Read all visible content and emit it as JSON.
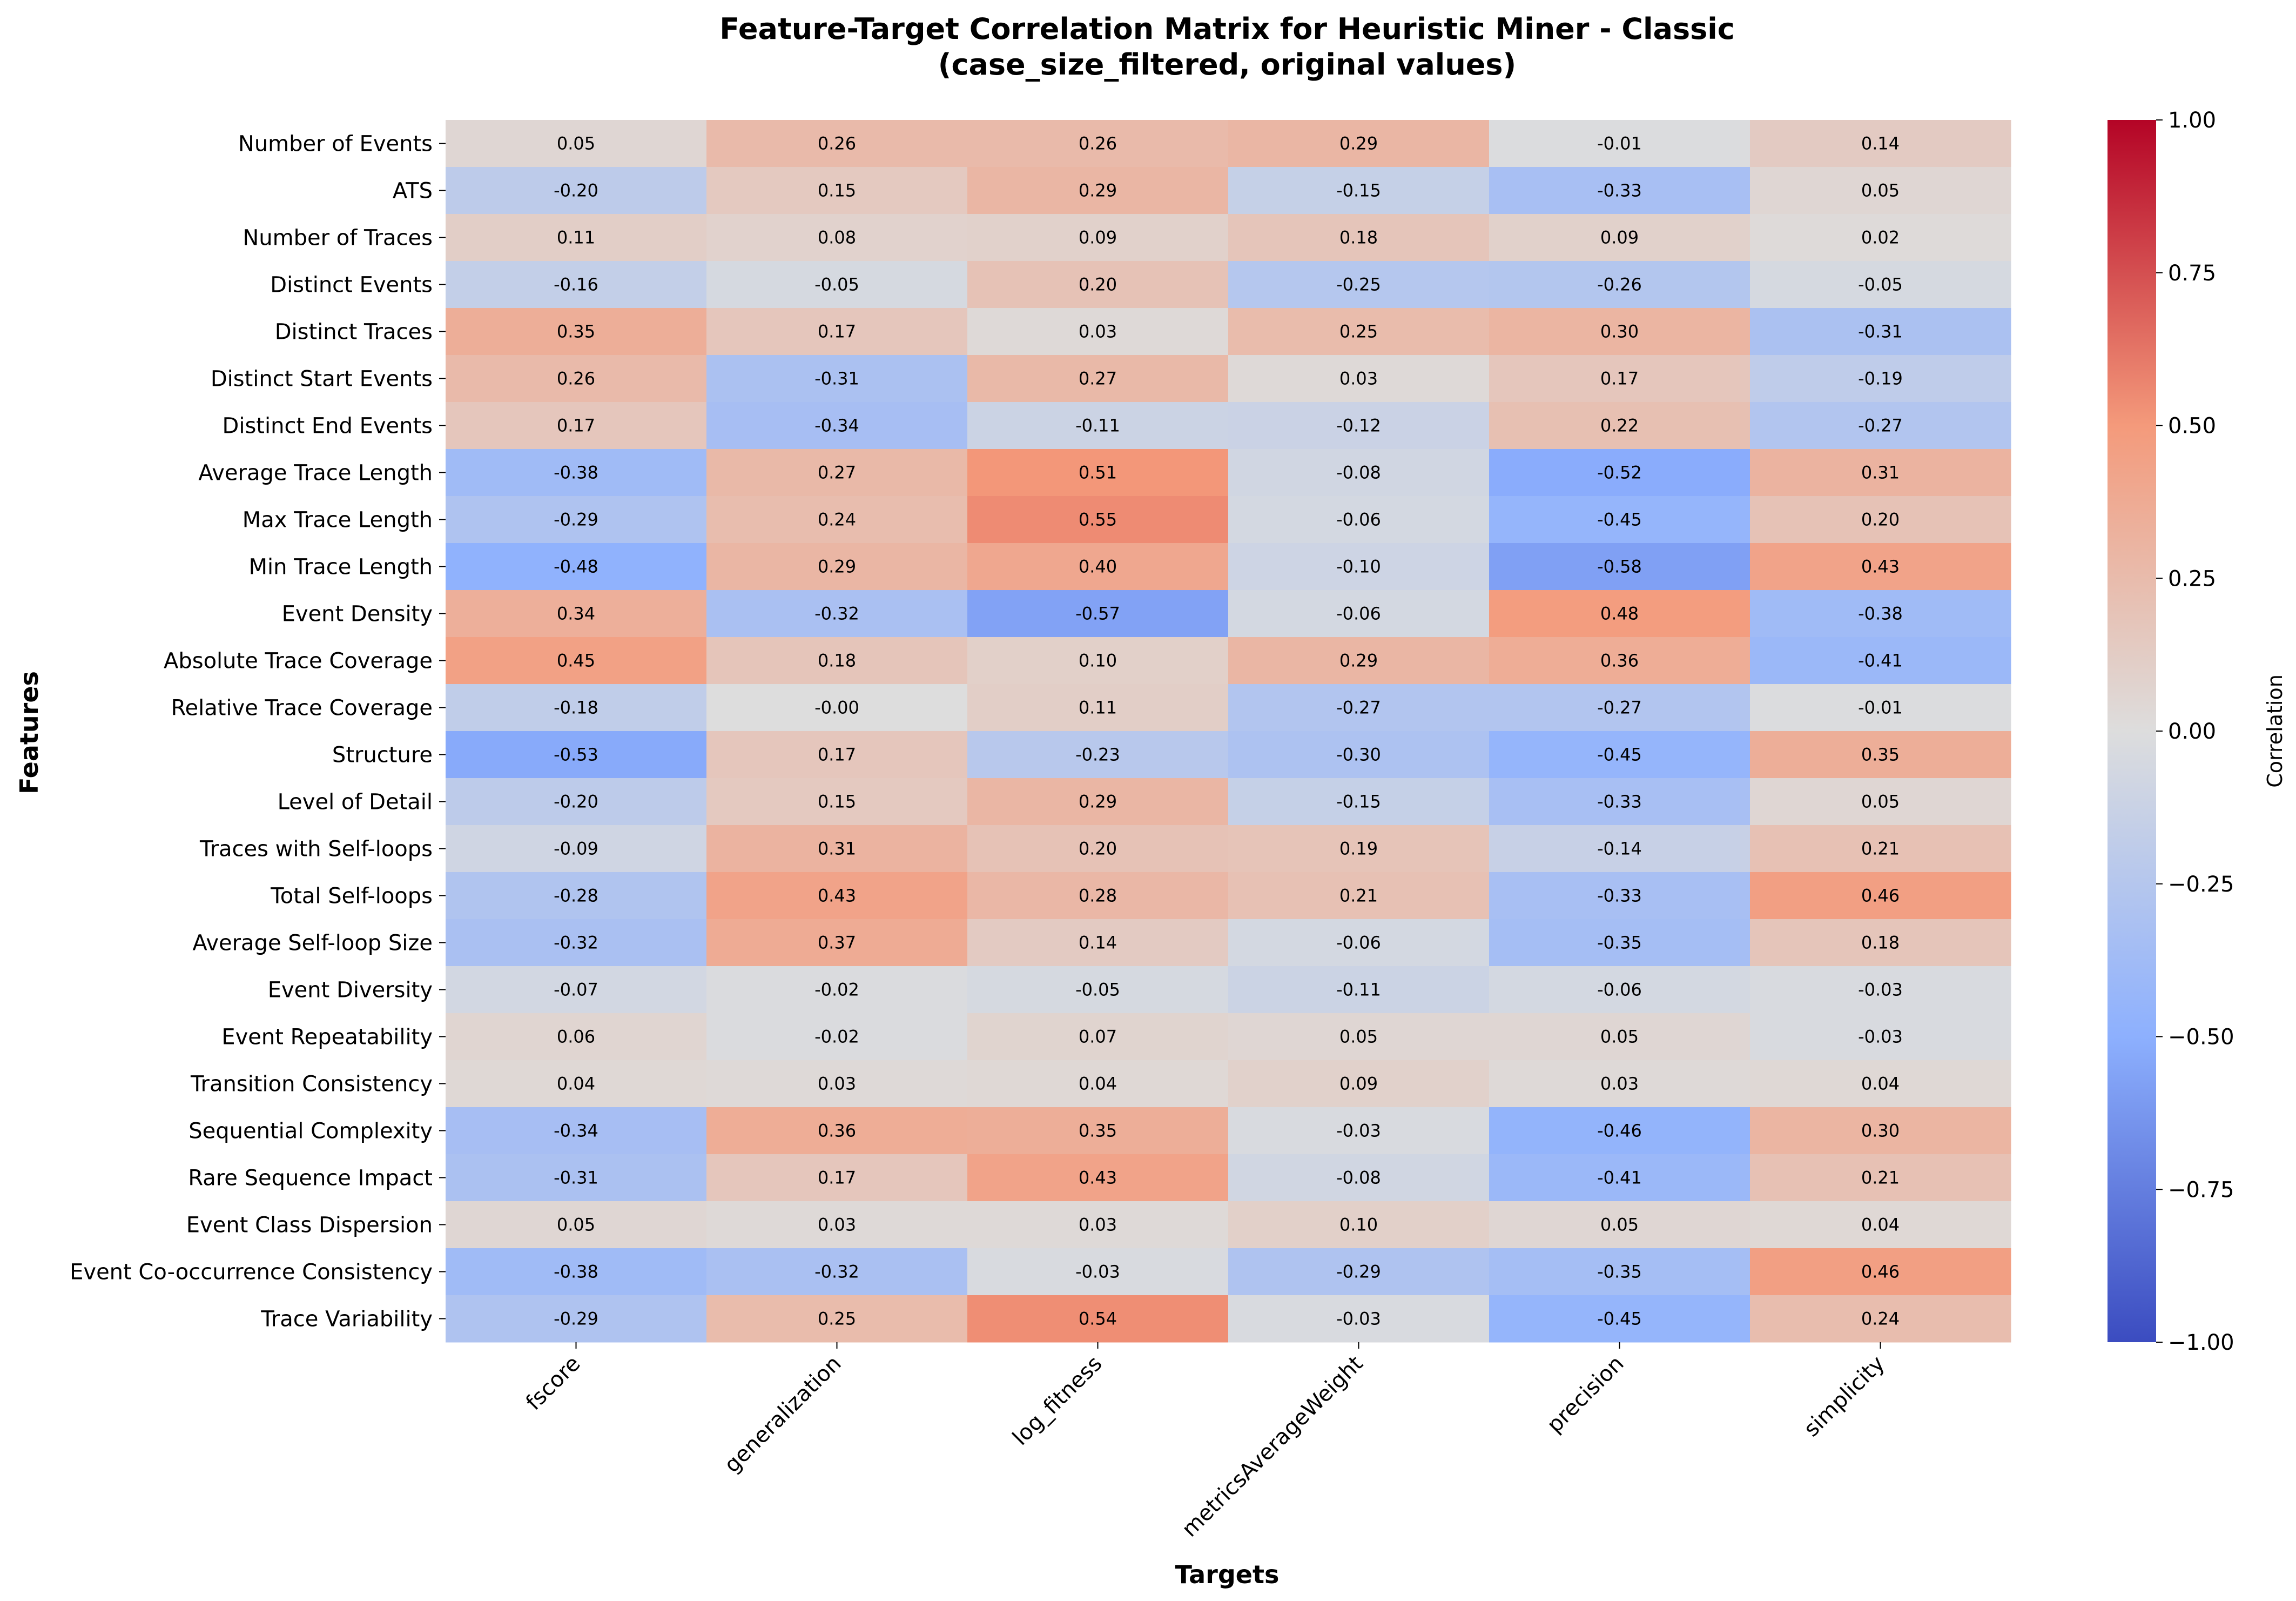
{
  "chart_data": {
    "type": "heatmap",
    "title": "Feature-Target Correlation Matrix for Heuristic Miner - Classic",
    "subtitle": "(case_size_filtered, original values)",
    "xlabel": "Targets",
    "ylabel": "Features",
    "colorbar_label": "Correlation",
    "colormap": "coolwarm",
    "vmin": -1.0,
    "vmax": 1.0,
    "colorbar_ticks": [
      "1.00",
      "0.75",
      "0.50",
      "0.25",
      "0.00",
      "−0.25",
      "−0.50",
      "−0.75",
      "−1.00"
    ],
    "colorbar_tick_values": [
      1.0,
      0.75,
      0.5,
      0.25,
      0.0,
      -0.25,
      -0.5,
      -0.75,
      -1.0
    ],
    "columns": [
      "fscore",
      "generalization",
      "log_fitness",
      "metricsAverageWeight",
      "precision",
      "simplicity"
    ],
    "rows": [
      "Number of Events",
      "ATS",
      "Number of Traces",
      "Distinct Events",
      "Distinct Traces",
      "Distinct Start Events",
      "Distinct End Events",
      "Average Trace Length",
      "Max Trace Length",
      "Min Trace Length",
      "Event Density",
      "Absolute Trace Coverage",
      "Relative Trace Coverage",
      "Structure",
      "Level of Detail",
      "Traces with Self-loops",
      "Total Self-loops",
      "Average Self-loop Size",
      "Event Diversity",
      "Event Repeatability",
      "Transition Consistency",
      "Sequential Complexity",
      "Rare Sequence Impact",
      "Event Class Dispersion",
      "Event Co-occurrence Consistency",
      "Trace Variability"
    ],
    "values": [
      [
        0.05,
        0.26,
        0.26,
        0.29,
        -0.01,
        0.14
      ],
      [
        -0.2,
        0.15,
        0.29,
        -0.15,
        -0.33,
        0.05
      ],
      [
        0.11,
        0.08,
        0.09,
        0.18,
        0.09,
        0.02
      ],
      [
        -0.16,
        -0.05,
        0.2,
        -0.25,
        -0.26,
        -0.05
      ],
      [
        0.35,
        0.17,
        0.03,
        0.25,
        0.3,
        -0.31
      ],
      [
        0.26,
        -0.31,
        0.27,
        0.03,
        0.17,
        -0.19
      ],
      [
        0.17,
        -0.34,
        -0.11,
        -0.12,
        0.22,
        -0.27
      ],
      [
        -0.38,
        0.27,
        0.51,
        -0.08,
        -0.52,
        0.31
      ],
      [
        -0.29,
        0.24,
        0.55,
        -0.06,
        -0.45,
        0.2
      ],
      [
        -0.48,
        0.29,
        0.4,
        -0.1,
        -0.58,
        0.43
      ],
      [
        0.34,
        -0.32,
        -0.57,
        -0.06,
        0.48,
        -0.38
      ],
      [
        0.45,
        0.18,
        0.1,
        0.29,
        0.36,
        -0.41
      ],
      [
        -0.18,
        -0.0,
        0.11,
        -0.27,
        -0.27,
        -0.01
      ],
      [
        -0.53,
        0.17,
        -0.23,
        -0.3,
        -0.45,
        0.35
      ],
      [
        -0.2,
        0.15,
        0.29,
        -0.15,
        -0.33,
        0.05
      ],
      [
        -0.09,
        0.31,
        0.2,
        0.19,
        -0.14,
        0.21
      ],
      [
        -0.28,
        0.43,
        0.28,
        0.21,
        -0.33,
        0.46
      ],
      [
        -0.32,
        0.37,
        0.14,
        -0.06,
        -0.35,
        0.18
      ],
      [
        -0.07,
        -0.02,
        -0.05,
        -0.11,
        -0.06,
        -0.03
      ],
      [
        0.06,
        -0.02,
        0.07,
        0.05,
        0.05,
        -0.03
      ],
      [
        0.04,
        0.03,
        0.04,
        0.09,
        0.03,
        0.04
      ],
      [
        -0.34,
        0.36,
        0.35,
        -0.03,
        -0.46,
        0.3
      ],
      [
        -0.31,
        0.17,
        0.43,
        -0.08,
        -0.41,
        0.21
      ],
      [
        0.05,
        0.03,
        0.03,
        0.1,
        0.05,
        0.04
      ],
      [
        -0.38,
        -0.32,
        -0.03,
        -0.29,
        -0.35,
        0.46
      ],
      [
        -0.29,
        0.25,
        0.54,
        -0.03,
        -0.45,
        0.24
      ]
    ],
    "value_labels": [
      [
        "0.05",
        "0.26",
        "0.26",
        "0.29",
        "-0.01",
        "0.14"
      ],
      [
        "-0.20",
        "0.15",
        "0.29",
        "-0.15",
        "-0.33",
        "0.05"
      ],
      [
        "0.11",
        "0.08",
        "0.09",
        "0.18",
        "0.09",
        "0.02"
      ],
      [
        "-0.16",
        "-0.05",
        "0.20",
        "-0.25",
        "-0.26",
        "-0.05"
      ],
      [
        "0.35",
        "0.17",
        "0.03",
        "0.25",
        "0.30",
        "-0.31"
      ],
      [
        "0.26",
        "-0.31",
        "0.27",
        "0.03",
        "0.17",
        "-0.19"
      ],
      [
        "0.17",
        "-0.34",
        "-0.11",
        "-0.12",
        "0.22",
        "-0.27"
      ],
      [
        "-0.38",
        "0.27",
        "0.51",
        "-0.08",
        "-0.52",
        "0.31"
      ],
      [
        "-0.29",
        "0.24",
        "0.55",
        "-0.06",
        "-0.45",
        "0.20"
      ],
      [
        "-0.48",
        "0.29",
        "0.40",
        "-0.10",
        "-0.58",
        "0.43"
      ],
      [
        "0.34",
        "-0.32",
        "-0.57",
        "-0.06",
        "0.48",
        "-0.38"
      ],
      [
        "0.45",
        "0.18",
        "0.10",
        "0.29",
        "0.36",
        "-0.41"
      ],
      [
        "-0.18",
        "-0.00",
        "0.11",
        "-0.27",
        "-0.27",
        "-0.01"
      ],
      [
        "-0.53",
        "0.17",
        "-0.23",
        "-0.30",
        "-0.45",
        "0.35"
      ],
      [
        "-0.20",
        "0.15",
        "0.29",
        "-0.15",
        "-0.33",
        "0.05"
      ],
      [
        "-0.09",
        "0.31",
        "0.20",
        "0.19",
        "-0.14",
        "0.21"
      ],
      [
        "-0.28",
        "0.43",
        "0.28",
        "0.21",
        "-0.33",
        "0.46"
      ],
      [
        "-0.32",
        "0.37",
        "0.14",
        "-0.06",
        "-0.35",
        "0.18"
      ],
      [
        "-0.07",
        "-0.02",
        "-0.05",
        "-0.11",
        "-0.06",
        "-0.03"
      ],
      [
        "0.06",
        "-0.02",
        "0.07",
        "0.05",
        "0.05",
        "-0.03"
      ],
      [
        "0.04",
        "0.03",
        "0.04",
        "0.09",
        "0.03",
        "0.04"
      ],
      [
        "-0.34",
        "0.36",
        "0.35",
        "-0.03",
        "-0.46",
        "0.30"
      ],
      [
        "-0.31",
        "0.17",
        "0.43",
        "-0.08",
        "-0.41",
        "0.21"
      ],
      [
        "0.05",
        "0.03",
        "0.03",
        "0.10",
        "0.05",
        "0.04"
      ],
      [
        "-0.38",
        "-0.32",
        "-0.03",
        "-0.29",
        "-0.35",
        "0.46"
      ],
      [
        "-0.29",
        "0.25",
        "0.54",
        "-0.03",
        "-0.45",
        "0.24"
      ]
    ]
  }
}
